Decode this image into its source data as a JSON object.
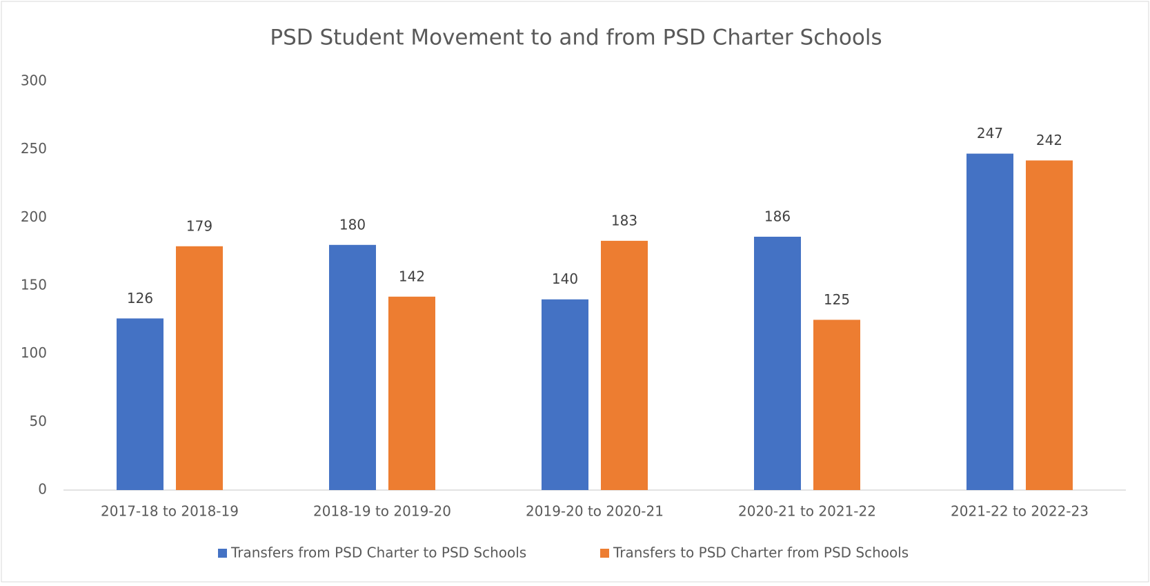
{
  "chart_data": {
    "type": "bar",
    "title": "PSD Student Movement to and from PSD Charter Schools",
    "categories": [
      "2017-18 to 2018-19",
      "2018-19 to 2019-20",
      "2019-20 to 2020-21",
      "2020-21 to 2021-22",
      "2021-22 to 2022-23"
    ],
    "series": [
      {
        "name": "Transfers from PSD Charter to PSD Schools",
        "color": "#4472c4",
        "values": [
          126,
          180,
          140,
          186,
          247
        ]
      },
      {
        "name": "Transfers to PSD Charter from PSD Schools",
        "color": "#ed7d31",
        "values": [
          179,
          142,
          183,
          125,
          242
        ]
      }
    ],
    "ylim": [
      0,
      300
    ],
    "yticks": [
      0,
      50,
      100,
      150,
      200,
      250,
      300
    ],
    "grid": false,
    "legend": "bottom"
  }
}
